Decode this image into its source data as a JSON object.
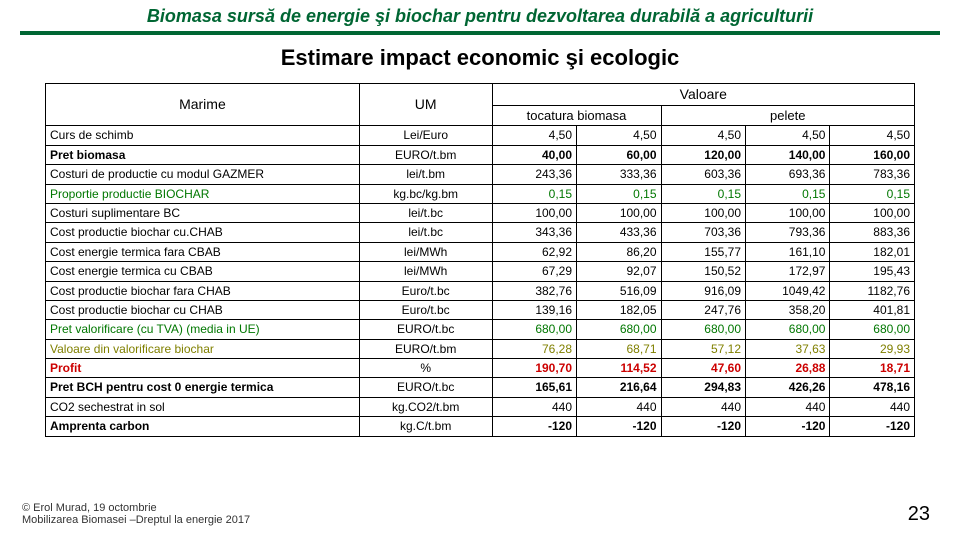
{
  "header": {
    "title": "Biomasa sursă de energie şi biochar pentru dezvoltarea durabilă a agriculturii",
    "underline_color": "#006633"
  },
  "main_title": "Estimare impact economic şi ecologic",
  "table": {
    "headers": {
      "marime": "Marime",
      "um": "UM",
      "valoare": "Valoare",
      "sub1": "tocatura biomasa",
      "sub2": "pelete"
    },
    "rows": [
      {
        "m": "Curs de schimb",
        "um": "Lei/Euro",
        "v": [
          "4,50",
          "4,50",
          "4,50",
          "4,50",
          "4,50"
        ],
        "style": ""
      },
      {
        "m": "Pret  biomasa",
        "um": "EURO/t.bm",
        "v": [
          "40,00",
          "60,00",
          "120,00",
          "140,00",
          "160,00"
        ],
        "style": "bold"
      },
      {
        "m": "Costuri de productie cu modul GAZMER",
        "um": "lei/t.bm",
        "v": [
          "243,36",
          "333,36",
          "603,36",
          "693,36",
          "783,36"
        ],
        "style": ""
      },
      {
        "m": "Proportie  productie BIOCHAR",
        "um": "kg.bc/kg.bm",
        "v": [
          "0,15",
          "0,15",
          "0,15",
          "0,15",
          "0,15"
        ],
        "style": "green"
      },
      {
        "m": "Costuri suplimentare BC",
        "um": "lei/t.bc",
        "v": [
          "100,00",
          "100,00",
          "100,00",
          "100,00",
          "100,00"
        ],
        "style": ""
      },
      {
        "m": "Cost productie biochar cu.CHAB",
        "um": "lei/t.bc",
        "v": [
          "343,36",
          "433,36",
          "703,36",
          "793,36",
          "883,36"
        ],
        "style": ""
      },
      {
        "m": "Cost energie termica fara CBAB",
        "um": "lei/MWh",
        "v": [
          "62,92",
          "86,20",
          "155,77",
          "161,10",
          "182,01"
        ],
        "style": ""
      },
      {
        "m": "Cost energie termica cu CBAB",
        "um": "lei/MWh",
        "v": [
          "67,29",
          "92,07",
          "150,52",
          "172,97",
          "195,43"
        ],
        "style": ""
      },
      {
        "m": "Cost productie biochar fara CHAB",
        "um": "Euro/t.bc",
        "v": [
          "382,76",
          "516,09",
          "916,09",
          "1049,42",
          "1182,76"
        ],
        "style": ""
      },
      {
        "m": "Cost productie biochar cu CHAB",
        "um": "Euro/t.bc",
        "v": [
          "139,16",
          "182,05",
          "247,76",
          "358,20",
          "401,81"
        ],
        "style": ""
      },
      {
        "m": "Pret valorificare  (cu TVA) (media in UE)",
        "um": "EURO/t.bc",
        "v": [
          "680,00",
          "680,00",
          "680,00",
          "680,00",
          "680,00"
        ],
        "style": "green"
      },
      {
        "m": "Valoare din valorificare biochar",
        "um": "EURO/t.bm",
        "v": [
          "76,28",
          "68,71",
          "57,12",
          "37,63",
          "29,93"
        ],
        "style": "olive"
      },
      {
        "m": "Profit",
        "um": "%",
        "v": [
          "190,70",
          "114,52",
          "47,60",
          "26,88",
          "18,71"
        ],
        "style": "bold red",
        "mred": true
      },
      {
        "m": "Pret BCH pentru cost 0 energie termica",
        "um": "EURO/t.bc",
        "v": [
          "165,61",
          "216,64",
          "294,83",
          "426,26",
          "478,16"
        ],
        "style": "bold"
      },
      {
        "m": "CO2 sechestrat in sol",
        "um": "kg.CO2/t.bm",
        "v": [
          "440",
          "440",
          "440",
          "440",
          "440"
        ],
        "style": ""
      },
      {
        "m": "Amprenta carbon",
        "um": "kg.C/t.bm",
        "v": [
          "-120",
          "-120",
          "-120",
          "-120",
          "-120"
        ],
        "style": "bold"
      }
    ]
  },
  "footer": {
    "line1": "© Erol Murad, 19 octombrie",
    "line2": "Mobilizarea Biomasei –Dreptul la energie 2017"
  },
  "page_num": "23"
}
